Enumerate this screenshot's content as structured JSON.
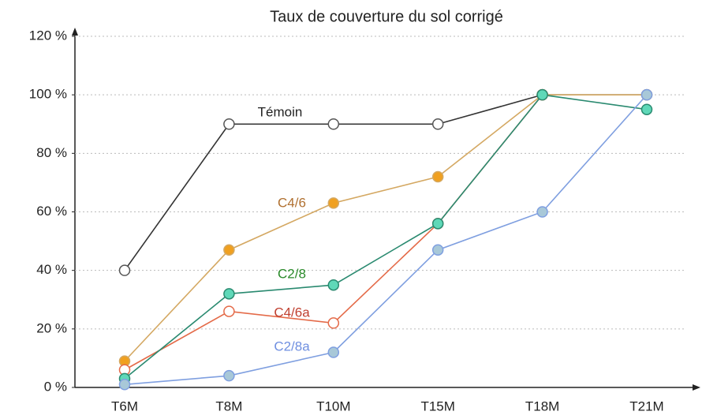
{
  "chart_data": {
    "type": "line",
    "title": "Taux de couverture du sol corrigé",
    "categories": [
      "T6M",
      "T8M",
      "T10M",
      "T15M",
      "T18M",
      "T21M"
    ],
    "ylim": [
      0,
      120
    ],
    "yticks": [
      {
        "value": 0,
        "label": "0 %"
      },
      {
        "value": 20,
        "label": "20 %"
      },
      {
        "value": 40,
        "label": "40 %"
      },
      {
        "value": 60,
        "label": "60 %"
      },
      {
        "value": 80,
        "label": "80 %"
      },
      {
        "value": 100,
        "label": "100 %"
      },
      {
        "value": 120,
        "label": "120 %"
      }
    ],
    "grid": true,
    "series": [
      {
        "name": "Témoin",
        "color": "#333333",
        "marker_color": "#ffffff",
        "values": [
          40,
          90,
          90,
          90,
          100,
          100
        ]
      },
      {
        "name": "C4/6",
        "color": "#d4a862",
        "marker_color": "#f0a020",
        "values": [
          9,
          47,
          63,
          72,
          100,
          100
        ]
      },
      {
        "name": "C4/6a",
        "color": "#e46a48",
        "marker_color": "#ffffff",
        "values": [
          6,
          26,
          22,
          56,
          100,
          null
        ]
      },
      {
        "name": "C2/8",
        "color": "#2a8a70",
        "marker_color": "#5fd8b8",
        "values": [
          3,
          32,
          35,
          56,
          100,
          95
        ]
      },
      {
        "name": "C2/8a",
        "color": "#7f9fe0",
        "marker_color": "#a8c8d8",
        "values": [
          1,
          4,
          12,
          47,
          60,
          100
        ]
      }
    ]
  }
}
